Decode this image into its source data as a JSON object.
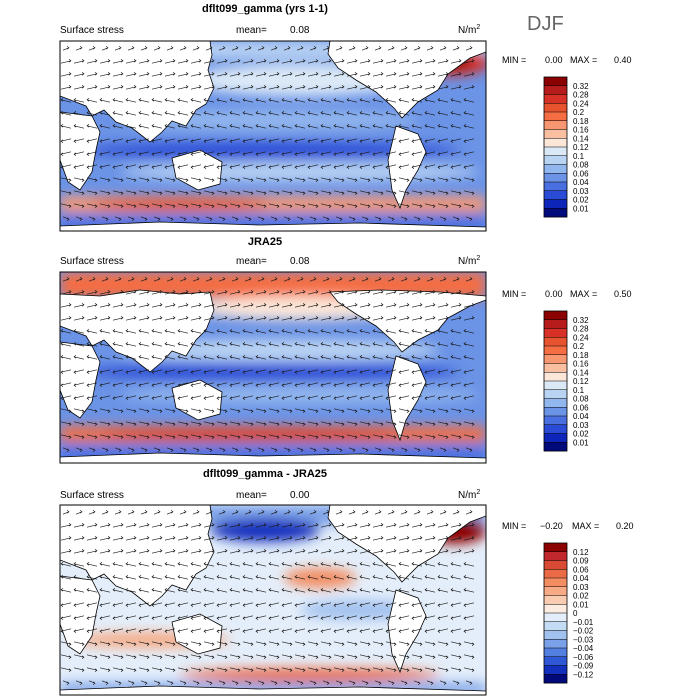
{
  "season": "DJF",
  "colors": {
    "land": "#ffffff",
    "coast": "#000000",
    "arrow": "#1a1a1a"
  },
  "chart_data": [
    {
      "type": "heatmap",
      "title": "dflt099_gamma (yrs 1-1)",
      "field": "Surface stress",
      "mean_label": "mean=",
      "mean": "0.08",
      "units": "N/m",
      "units_exp": "2",
      "min_label": "MIN =",
      "min": "0.00",
      "max_label": "MAX =",
      "max": "0.40",
      "colorbar": {
        "labels": [
          "0.32",
          "0.28",
          "0.24",
          "0.2",
          "0.18",
          "0.16",
          "0.14",
          "0.12",
          "0.1",
          "0.08",
          "0.06",
          "0.04",
          "0.03",
          "0.02",
          "0.01"
        ],
        "colors": [
          "#8b0000",
          "#b71c1c",
          "#d73027",
          "#e8532f",
          "#f46d43",
          "#f79772",
          "#f9bfa0",
          "#fbe6d8",
          "#dbe9f7",
          "#b9d3f3",
          "#92b6ee",
          "#6b93e6",
          "#4a6fe0",
          "#2a4bd6",
          "#0d25b8",
          "#000a7a"
        ]
      }
    },
    {
      "type": "heatmap",
      "title": "JRA25",
      "field": "Surface stress",
      "mean_label": "mean=",
      "mean": "0.08",
      "units": "N/m",
      "units_exp": "2",
      "min_label": "MIN =",
      "min": "0.00",
      "max_label": "MAX =",
      "max": "0.50",
      "colorbar": {
        "labels": [
          "0.32",
          "0.28",
          "0.24",
          "0.2",
          "0.18",
          "0.16",
          "0.14",
          "0.12",
          "0.1",
          "0.08",
          "0.06",
          "0.04",
          "0.03",
          "0.02",
          "0.01"
        ],
        "colors": [
          "#8b0000",
          "#b71c1c",
          "#d73027",
          "#e8532f",
          "#f46d43",
          "#f79772",
          "#f9bfa0",
          "#fbe6d8",
          "#dbe9f7",
          "#b9d3f3",
          "#92b6ee",
          "#6b93e6",
          "#4a6fe0",
          "#2a4bd6",
          "#0d25b8",
          "#000a7a"
        ]
      }
    },
    {
      "type": "heatmap",
      "title": "dflt099_gamma - JRA25",
      "field": "Surface stress",
      "mean_label": "mean=",
      "mean": "0.00",
      "units": "N/m",
      "units_exp": "2",
      "min_label": "MIN =",
      "min": "−0.20",
      "max_label": "MAX =",
      "max": "0.20",
      "colorbar": {
        "labels": [
          "0.12",
          "0.09",
          "0.06",
          "0.04",
          "0.03",
          "0.02",
          "0.01",
          "0",
          "−0.01",
          "−0.02",
          "−0.03",
          "−0.04",
          "−0.06",
          "−0.09",
          "−0.12"
        ],
        "colors": [
          "#8b0000",
          "#c0282d",
          "#d94a35",
          "#ea6b45",
          "#f38d62",
          "#f6ab86",
          "#f9cbb0",
          "#fcebe0",
          "#e4eefa",
          "#c4dbf4",
          "#a1c1ef",
          "#7ba2e8",
          "#537fe1",
          "#2f58d6",
          "#1230bd",
          "#000a7a"
        ]
      }
    }
  ]
}
